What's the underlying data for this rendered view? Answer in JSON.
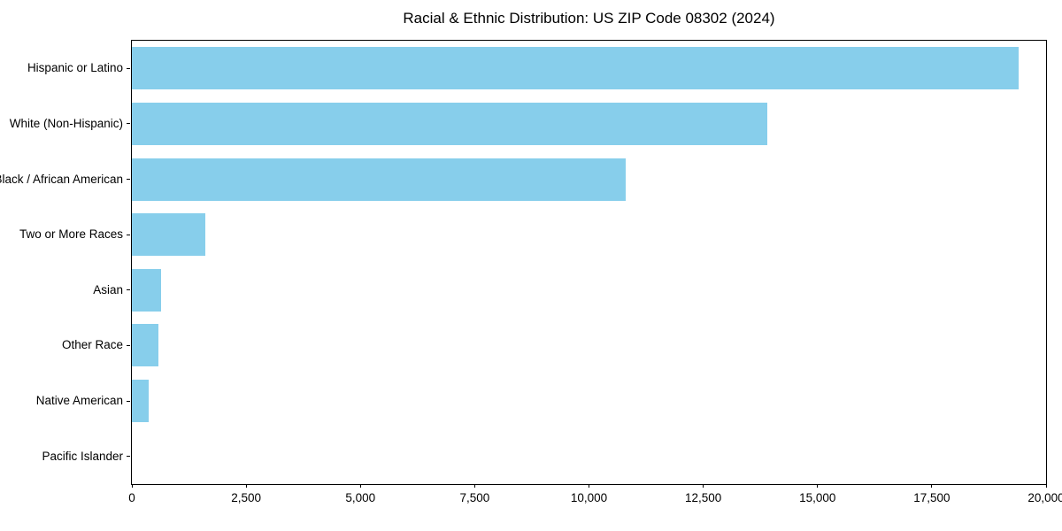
{
  "chart_data": {
    "type": "bar",
    "orientation": "horizontal",
    "title": "Racial & Ethnic Distribution: US ZIP Code 08302 (2024)",
    "categories": [
      "Hispanic or Latino",
      "White (Non-Hispanic)",
      "Black / African American",
      "Two or More Races",
      "Asian",
      "Other Race",
      "Native American",
      "Pacific Islander"
    ],
    "values": [
      19400,
      13900,
      10800,
      1600,
      630,
      590,
      370,
      0
    ],
    "xlabel": "",
    "ylabel": "",
    "xlim": [
      0,
      20000
    ],
    "xticks": [
      0,
      2500,
      5000,
      7500,
      10000,
      12500,
      15000,
      17500,
      20000
    ],
    "xtick_labels": [
      "0",
      "2,500",
      "5,000",
      "7,500",
      "10,000",
      "12,500",
      "15,000",
      "17,500",
      "20,000"
    ],
    "bar_color": "#87CEEB",
    "spine_color": "#000000",
    "grid": false,
    "legend": null
  }
}
